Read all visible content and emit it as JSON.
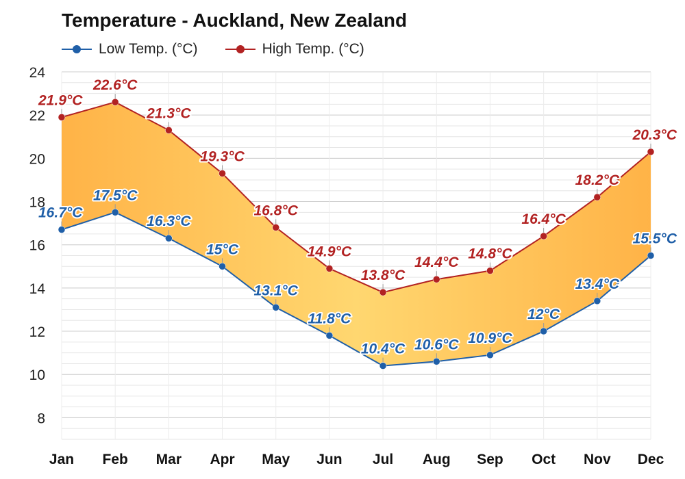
{
  "chart_data": {
    "type": "line",
    "title": "Temperature - Auckland, New Zealand",
    "categories": [
      "Jan",
      "Feb",
      "Mar",
      "Apr",
      "May",
      "Jun",
      "Jul",
      "Aug",
      "Sep",
      "Oct",
      "Nov",
      "Dec"
    ],
    "series": [
      {
        "name": "Low Temp. (°C)",
        "color": "#1f5fa8",
        "values": [
          16.7,
          17.5,
          16.3,
          15.0,
          13.1,
          11.8,
          10.4,
          10.6,
          10.9,
          12.0,
          13.4,
          15.5
        ],
        "labels": [
          "16.7°C",
          "17.5°C",
          "16.3°C",
          "15°C",
          "13.1°C",
          "11.8°C",
          "10.4°C",
          "10.6°C",
          "10.9°C",
          "12°C",
          "13.4°C",
          "15.5°C"
        ]
      },
      {
        "name": "High Temp. (°C)",
        "color": "#b22222",
        "values": [
          21.9,
          22.6,
          21.3,
          19.3,
          16.8,
          14.9,
          13.8,
          14.4,
          14.8,
          16.4,
          18.2,
          20.3
        ],
        "labels": [
          "21.9°C",
          "22.6°C",
          "21.3°C",
          "19.3°C",
          "16.8°C",
          "14.9°C",
          "13.8°C",
          "14.4°C",
          "14.8°C",
          "16.4°C",
          "18.2°C",
          "20.3°C"
        ]
      }
    ],
    "ylim": [
      7,
      24
    ],
    "yticks": [
      8,
      10,
      12,
      14,
      16,
      18,
      20,
      22,
      24
    ],
    "xlabel": "",
    "ylabel": "",
    "grid": true,
    "legend_position": "top-left",
    "fill_between": true
  }
}
